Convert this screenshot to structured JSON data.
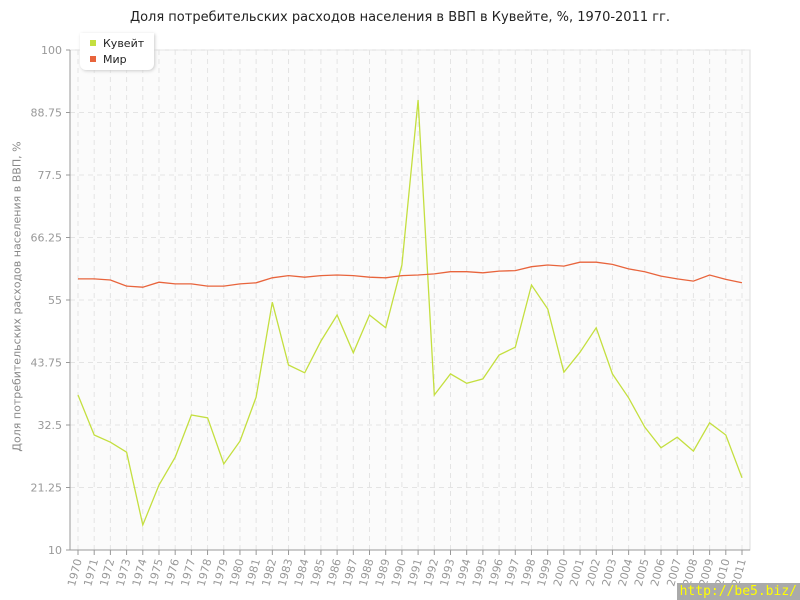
{
  "chart_data": {
    "type": "line",
    "title": "Доля потребительских расходов населения в ВВП в Кувейте, %, 1970-2011 гг.",
    "xlabel": "",
    "ylabel": "Доля потребительских расходов населения в ВВП, %",
    "ylim": [
      10,
      100
    ],
    "yticks": [
      "10",
      "21.25",
      "32.5",
      "43.75",
      "55",
      "66.25",
      "77.5",
      "88.75",
      "100"
    ],
    "grid": true,
    "legend_position": "top-left",
    "x": [
      "1970",
      "1971",
      "1972",
      "1973",
      "1974",
      "1975",
      "1976",
      "1977",
      "1978",
      "1979",
      "1980",
      "1981",
      "1982",
      "1983",
      "1984",
      "1985",
      "1986",
      "1987",
      "1988",
      "1989",
      "1990",
      "1991",
      "1992",
      "1993",
      "1994",
      "1995",
      "1996",
      "1997",
      "1998",
      "1999",
      "2000",
      "2001",
      "2002",
      "2003",
      "2004",
      "2005",
      "2006",
      "2007",
      "2008",
      "2009",
      "2010",
      "2011"
    ],
    "series": [
      {
        "name": "Кувейт",
        "color": "#c4df3f",
        "values": [
          37.9,
          30.7,
          29.4,
          27.6,
          14.5,
          21.7,
          26.7,
          34.3,
          33.8,
          25.5,
          29.6,
          37.5,
          54.6,
          43.3,
          41.9,
          47.6,
          52.3,
          45.5,
          52.3,
          50.0,
          61.3,
          91.0,
          37.9,
          41.7,
          40.0,
          40.8,
          45.1,
          46.5,
          57.7,
          53.4,
          42.0,
          45.6,
          50.0,
          41.7,
          37.4,
          32.1,
          28.4,
          30.3,
          27.8,
          32.9,
          30.7,
          23.0
        ]
      },
      {
        "name": "Мир",
        "color": "#e8643c",
        "values": [
          58.8,
          58.8,
          58.6,
          57.5,
          57.3,
          58.2,
          57.9,
          57.9,
          57.5,
          57.5,
          57.9,
          58.1,
          59.0,
          59.4,
          59.1,
          59.4,
          59.5,
          59.4,
          59.1,
          59.0,
          59.4,
          59.5,
          59.7,
          60.1,
          60.1,
          59.9,
          60.2,
          60.3,
          61.0,
          61.3,
          61.1,
          61.8,
          61.8,
          61.4,
          60.6,
          60.1,
          59.3,
          58.8,
          58.4,
          59.5,
          58.7,
          58.1
        ]
      }
    ]
  },
  "watermark": "http://be5.biz/"
}
